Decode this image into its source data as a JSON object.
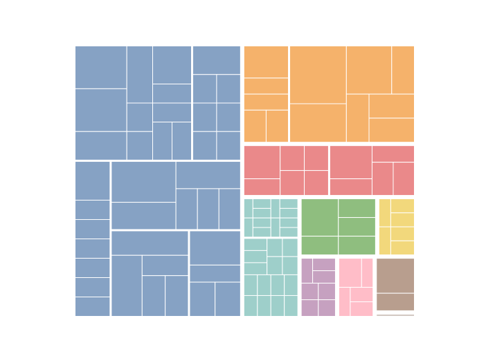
{
  "chart_data": {
    "type": "treemap",
    "title": "",
    "groups": [
      {
        "name": "",
        "color": "#86a2c4",
        "value": 40,
        "tiles": [
          {
            "value": 12,
            "children": [
              3,
              3,
              2,
              2,
              2,
              1,
              1,
              1,
              1,
              1,
              1
            ]
          },
          {
            "value": 5,
            "children": [
              2,
              1,
              1,
              1,
              1,
              1,
              1
            ]
          },
          {
            "value": 5,
            "children": [
              2,
              1,
              1,
              1,
              1,
              1,
              1
            ]
          },
          {
            "value": 8,
            "children": [
              3,
              2,
              2,
              1,
              1,
              1
            ]
          },
          {
            "value": 6,
            "children": [
              2,
              2,
              1,
              1,
              1
            ]
          },
          {
            "value": 4,
            "children": [
              2,
              1,
              1,
              1
            ]
          }
        ]
      },
      {
        "name": "",
        "color": "#f5b26b",
        "value": 15,
        "tiles": [
          {
            "value": 4,
            "children": [
              2,
              1,
              1,
              1,
              1
            ]
          },
          {
            "value": 11,
            "children": [
              3,
              2,
              2,
              1,
              1,
              1,
              1
            ]
          }
        ]
      },
      {
        "name": "",
        "color": "#ea898a",
        "value": 8,
        "tiles": [
          {
            "value": 4,
            "children": [
              2,
              1,
              1,
              1,
              1,
              1
            ]
          },
          {
            "value": 4,
            "children": [
              2,
              1,
              1,
              1,
              1
            ]
          }
        ]
      },
      {
        "name": "",
        "color": "#9ecfca",
        "value": 6,
        "tiles": [
          {
            "value": 2,
            "children": [
              1,
              1,
              1,
              1,
              1,
              1,
              1,
              1,
              1,
              1,
              1,
              1
            ]
          },
          {
            "value": 4,
            "children": [
              1,
              1,
              1,
              1,
              1,
              1,
              1,
              1,
              1,
              1,
              1,
              1,
              1,
              1,
              1
            ]
          }
        ]
      },
      {
        "name": "",
        "color": "#8fbe7f",
        "value": 4,
        "tiles": [
          {
            "value": 4,
            "children": [
              2,
              1,
              1,
              1,
              1
            ]
          }
        ]
      },
      {
        "name": "",
        "color": "#f2d87c",
        "value": 2,
        "tiles": [
          {
            "value": 2,
            "children": [
              1,
              1,
              1,
              1,
              1,
              1
            ]
          }
        ]
      },
      {
        "name": "",
        "color": "#c6a1c0",
        "value": 2,
        "tiles": [
          {
            "value": 2,
            "children": [
              1,
              1,
              1,
              1,
              1,
              1,
              1
            ]
          }
        ]
      },
      {
        "name": "",
        "color": "#ffbdc8",
        "value": 2,
        "tiles": [
          {
            "value": 2,
            "children": [
              2,
              1,
              1,
              1,
              1
            ]
          }
        ]
      },
      {
        "name": "",
        "color": "#b89e8e",
        "value": 2,
        "tiles": [
          {
            "value": 2,
            "children": [
              2,
              1
            ]
          }
        ]
      },
      {
        "name": "",
        "color": "#d3c9c3",
        "value": 0.2,
        "tiles": [
          {
            "value": 0.2,
            "children": [
              1
            ]
          }
        ]
      }
    ]
  }
}
